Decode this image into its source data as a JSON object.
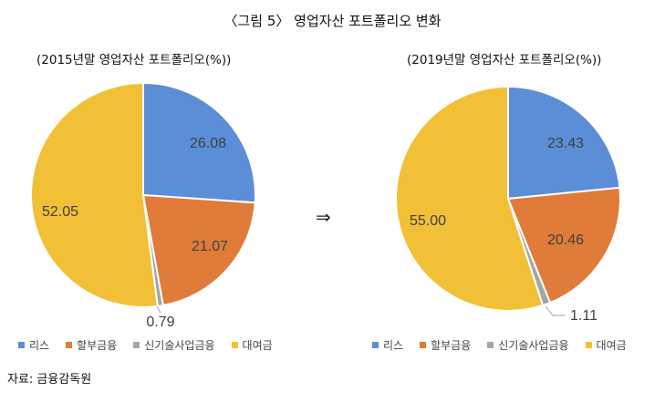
{
  "figure_title": "〈그림 5〉 영업자산 포트폴리오 변화",
  "arrow": "⇒",
  "source": "자료: 금융감독원",
  "chart_data": [
    {
      "type": "pie",
      "title": "(2015년말 영업자산 포트폴리오(%))",
      "categories": [
        "리스",
        "할부금융",
        "신기술사업금융",
        "대여금"
      ],
      "values": [
        26.08,
        21.07,
        0.79,
        52.05
      ],
      "value_labels": [
        "26.08",
        "21.07",
        "0.79",
        "52.05"
      ],
      "colors": [
        "#5B8ED6",
        "#E07B39",
        "#A5A5A5",
        "#F2C037"
      ],
      "legend_position": "bottom"
    },
    {
      "type": "pie",
      "title": "(2019년말 영업자산 포트폴리오(%))",
      "categories": [
        "리스",
        "할부금융",
        "신기술사업금융",
        "대여금"
      ],
      "values": [
        23.43,
        20.46,
        1.11,
        55.0
      ],
      "value_labels": [
        "23.43",
        "20.46",
        "1.11",
        "55.00"
      ],
      "colors": [
        "#5B8ED6",
        "#E07B39",
        "#A5A5A5",
        "#F2C037"
      ],
      "legend_position": "bottom"
    }
  ]
}
